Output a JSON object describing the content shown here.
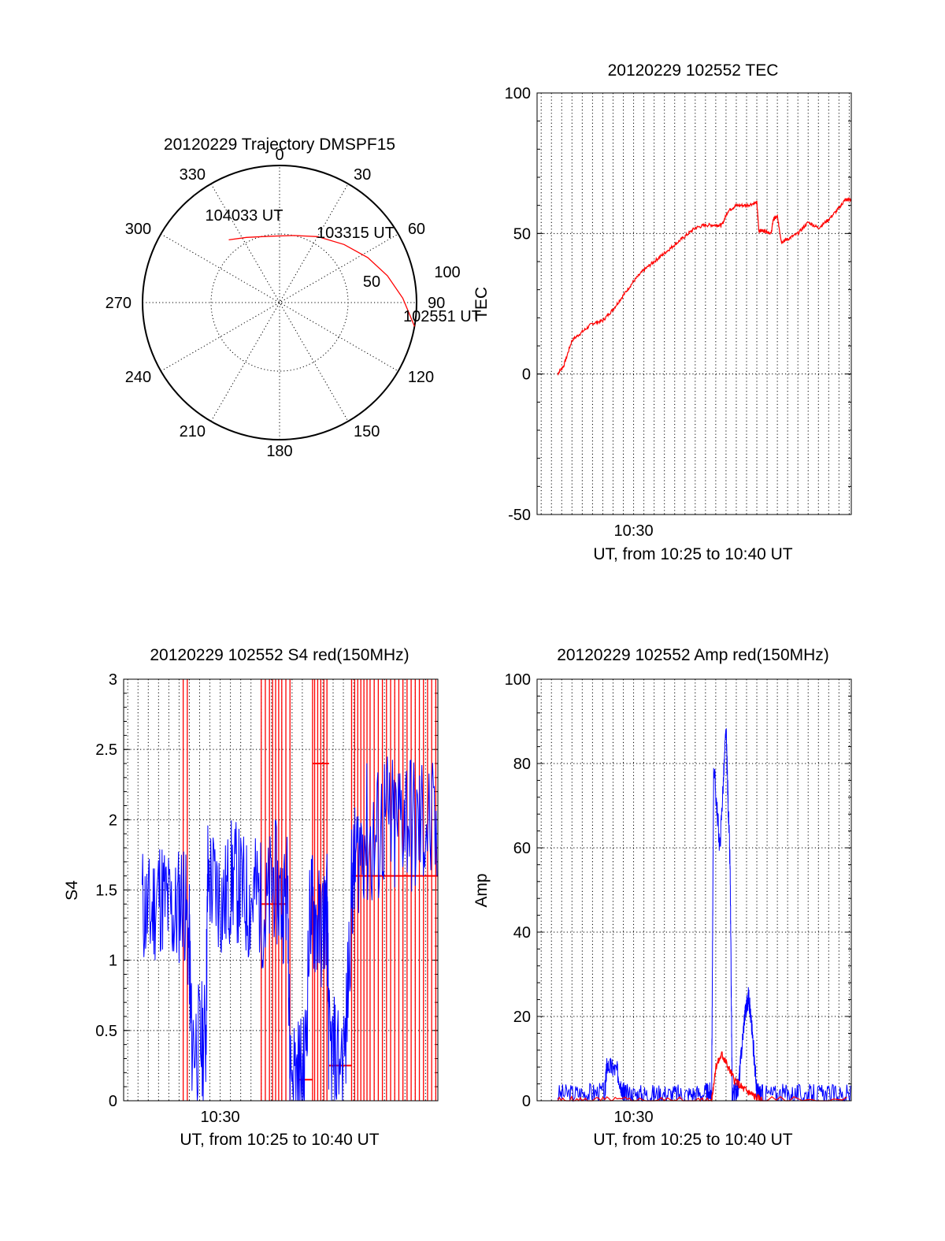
{
  "colors": {
    "red": "#ff0000",
    "blue": "#0000ff",
    "axis": "#000000"
  },
  "chart_data": [
    {
      "id": "polar",
      "type": "polar",
      "title": "20120229 Trajectory DMSPF15",
      "azimuth_labels": [
        "0",
        "30",
        "60",
        "90",
        "120",
        "150",
        "180",
        "210",
        "240",
        "270",
        "300",
        "330"
      ],
      "elevation_labels": [
        "50",
        "100"
      ],
      "trajectory": {
        "color": "#ff0000",
        "points": [
          {
            "az": 100,
            "el": 0
          },
          {
            "az": 88,
            "el": 9
          },
          {
            "az": 76,
            "el": 17
          },
          {
            "az": 63,
            "el": 25
          },
          {
            "az": 48,
            "el": 33
          },
          {
            "az": 30,
            "el": 40
          },
          {
            "az": 12,
            "el": 45
          },
          {
            "az": 352,
            "el": 46
          },
          {
            "az": 333,
            "el": 42
          },
          {
            "az": 321,
            "el": 37
          }
        ]
      },
      "annotations": [
        {
          "text": "104033 UT",
          "az": 333,
          "el": 42
        },
        {
          "text": "103315 UT",
          "az": 48,
          "el": 33
        },
        {
          "text": "102551 UT",
          "az": 100,
          "el": 0
        }
      ]
    },
    {
      "id": "tec",
      "type": "line",
      "title": "20120229 102552 TEC",
      "xlabel": "UT, from 10:25 to 10:40 UT",
      "ylabel": "TEC",
      "xlim_min": [
        25.3,
        40.6
      ],
      "ylim": [
        -50,
        100
      ],
      "yticks": [
        "-50",
        "0",
        "50",
        "100"
      ],
      "xticks": [
        {
          "at": 30,
          "label": "10:30"
        }
      ],
      "series": [
        {
          "color": "#ff0000",
          "x": [
            26.3,
            26.6,
            27.0,
            27.5,
            28.0,
            28.5,
            29.0,
            29.5,
            30.0,
            30.5,
            31.0,
            31.5,
            32.0,
            32.5,
            33.0,
            33.5,
            34.0,
            34.3,
            34.6,
            35.0,
            35.5,
            36.0,
            36.1,
            36.4,
            36.7,
            36.8,
            37.0,
            37.2,
            37.5,
            38.0,
            38.5,
            39.0,
            39.5,
            40.0,
            40.3,
            40.6
          ],
          "y": [
            0,
            3,
            12,
            15,
            18,
            19,
            23,
            28,
            33,
            37,
            40,
            43,
            46,
            49,
            52,
            53,
            53,
            53,
            58,
            60,
            60,
            61,
            51,
            51,
            50,
            55,
            56,
            47,
            48,
            50,
            54,
            52,
            55,
            59,
            62,
            62
          ]
        }
      ]
    },
    {
      "id": "s4",
      "type": "line",
      "title": "20120229 102552 S4 red(150MHz)",
      "xlabel": "UT, from 10:25 to 10:40 UT",
      "ylabel": "S4",
      "xlim_min": [
        25.3,
        40.6
      ],
      "ylim": [
        0,
        3
      ],
      "yticks": [
        "0",
        "0.5",
        "1",
        "1.5",
        "2",
        "2.5",
        "3"
      ],
      "xticks": [
        {
          "at": 30,
          "label": "10:30"
        }
      ],
      "series": [
        {
          "name": "",
          "color": "#ff0000",
          "segments": [
            {
              "x0": 28.4,
              "x1": 28.4,
              "y": 1.1
            },
            {
              "x0": 32.0,
              "x1": 33.2,
              "y": 1.4
            },
            {
              "x0": 33.8,
              "x1": 34.5,
              "y": 0.15
            },
            {
              "x0": 34.5,
              "x1": 35.3,
              "y": 2.4
            },
            {
              "x0": 35.3,
              "x1": 36.4,
              "y": 0.25
            },
            {
              "x0": 36.4,
              "x1": 40.6,
              "y": 1.6
            }
          ],
          "spikes_x": [
            28.2,
            28.4,
            32.0,
            32.2,
            32.4,
            32.55,
            32.7,
            32.85,
            33.0,
            33.2,
            33.4,
            34.5,
            34.6,
            34.75,
            34.9,
            35.05,
            35.2,
            36.4,
            36.55,
            36.7,
            36.85,
            37.0,
            37.15,
            37.3,
            37.5,
            37.7,
            37.9,
            38.1,
            38.3,
            38.5,
            38.7,
            38.9,
            39.1,
            39.3,
            39.5,
            39.7,
            39.9,
            40.1,
            40.3,
            40.5
          ]
        },
        {
          "name": "",
          "color": "#0000ff",
          "x": [
            26.2,
            26.6,
            27.0,
            27.4,
            27.8,
            28.2,
            28.5,
            28.6,
            29.0,
            29.3,
            29.4,
            29.8,
            30.2,
            30.6,
            31.0,
            31.4,
            31.8,
            32.2,
            32.6,
            33.0,
            33.3,
            33.4,
            33.8,
            34.1,
            34.4,
            34.6,
            34.9,
            35.2,
            35.3,
            35.6,
            36.1,
            36.4,
            36.6,
            37.0,
            37.5,
            38.0,
            38.5,
            39.0,
            39.5,
            40.0,
            40.6
          ],
          "y": [
            1.4,
            1.3,
            1.5,
            1.4,
            1.3,
            1.5,
            1.1,
            0.45,
            0.4,
            0.45,
            1.6,
            1.5,
            1.4,
            1.6,
            1.5,
            1.4,
            1.5,
            1.3,
            1.6,
            1.4,
            1.5,
            0.25,
            0.2,
            0.18,
            1.4,
            1.3,
            1.2,
            1.4,
            0.35,
            0.3,
            0.35,
            1.5,
            1.7,
            1.9,
            1.8,
            2.0,
            1.9,
            2.1,
            1.9,
            2.0,
            1.8
          ]
        }
      ]
    },
    {
      "id": "amp",
      "type": "line",
      "title": "20120229 102552 Amp red(150MHz)",
      "xlabel": "UT, from 10:25 to 10:40 UT",
      "ylabel": "Amp",
      "xlim_min": [
        25.3,
        40.6
      ],
      "ylim": [
        0,
        100
      ],
      "yticks": [
        "0",
        "20",
        "40",
        "60",
        "80",
        "100"
      ],
      "xticks": [
        {
          "at": 30,
          "label": "10:30"
        }
      ],
      "series": [
        {
          "name": "",
          "color": "#ff0000",
          "x": [
            26.3,
            28.0,
            30.0,
            33.0,
            33.8,
            34.0,
            34.3,
            34.5,
            34.9,
            35.3,
            35.6,
            35.9,
            36.3,
            40.6
          ],
          "y": [
            0,
            0,
            0,
            0,
            0,
            8,
            11,
            9,
            5,
            3,
            2,
            1,
            0,
            0
          ]
        },
        {
          "name": "",
          "color": "#0000ff",
          "x": [
            26.3,
            27.5,
            28.6,
            28.7,
            29.2,
            29.5,
            29.6,
            30.5,
            31.5,
            32.5,
            33.5,
            33.8,
            33.9,
            34.2,
            34.5,
            34.7,
            34.8,
            35.1,
            35.4,
            35.6,
            35.8,
            36.0,
            36.3,
            37.5,
            38.5,
            39.5,
            40.6
          ],
          "y": [
            1.5,
            1.8,
            2.0,
            8.5,
            7.0,
            2.0,
            1.5,
            1.5,
            1.6,
            1.5,
            1.8,
            2.0,
            80,
            60,
            88,
            55,
            2.0,
            3.0,
            20,
            25,
            15,
            2.0,
            1.5,
            1.5,
            1.5,
            1.4,
            1.3
          ]
        }
      ]
    }
  ]
}
